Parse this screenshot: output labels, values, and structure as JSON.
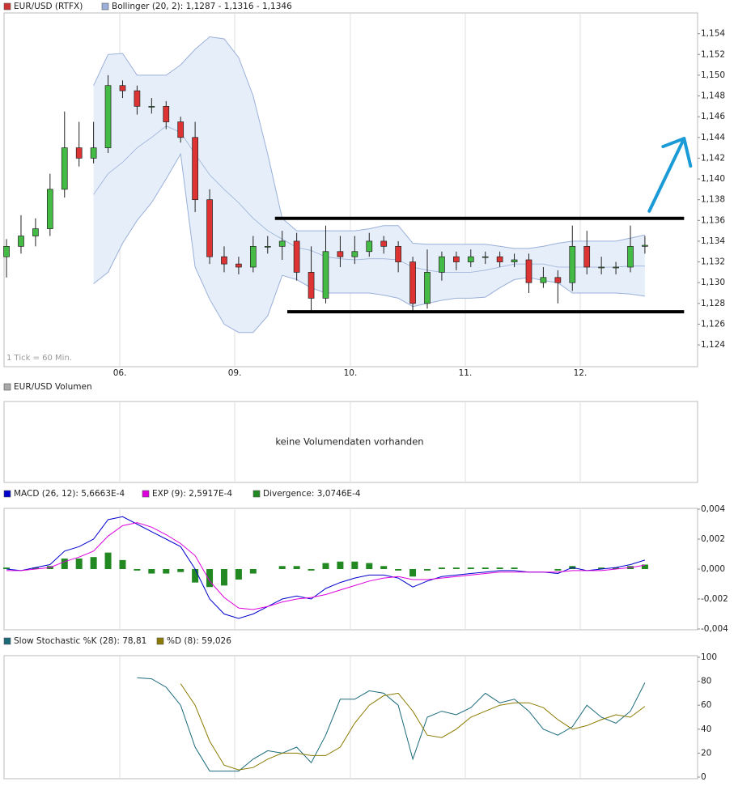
{
  "chart_data": [
    {
      "type": "candlestick",
      "annotation": "1 Tick = 60 Min.",
      "xlim": [
        -0.17,
        47.63
      ],
      "xticks": [
        {
          "value": 7.81,
          "label": "06."
        },
        {
          "value": 15.73,
          "label": "09."
        },
        {
          "value": 23.7,
          "label": "10."
        },
        {
          "value": 31.62,
          "label": "11."
        },
        {
          "value": 39.54,
          "label": "12."
        }
      ],
      "ylim": [
        1.1219,
        1.156
      ],
      "yticks": [
        {
          "value": 1.124,
          "label": "1,124"
        },
        {
          "value": 1.126,
          "label": "1,126"
        },
        {
          "value": 1.128,
          "label": "1,128"
        },
        {
          "value": 1.13,
          "label": "1,130"
        },
        {
          "value": 1.132,
          "label": "1,132"
        },
        {
          "value": 1.134,
          "label": "1,134"
        },
        {
          "value": 1.136,
          "label": "1,136"
        },
        {
          "value": 1.138,
          "label": "1,138"
        },
        {
          "value": 1.14,
          "label": "1,140"
        },
        {
          "value": 1.142,
          "label": "1,142"
        },
        {
          "value": 1.144,
          "label": "1,144"
        },
        {
          "value": 1.146,
          "label": "1,146"
        },
        {
          "value": 1.148,
          "label": "1,148"
        },
        {
          "value": 1.15,
          "label": "1,150"
        },
        {
          "value": 1.152,
          "label": "1,152"
        },
        {
          "value": 1.154,
          "label": "1,154"
        }
      ],
      "grid": "x",
      "series": [
        {
          "name": "EUR/USD (RTFX)",
          "color": "#cc3333",
          "up_color": "#44bb44",
          "down_color": "#dd3333",
          "open": [
            1.1325,
            1.1335,
            1.1345,
            1.1352,
            1.139,
            1.143,
            1.142,
            1.143,
            1.149,
            1.1485,
            1.147,
            1.147,
            1.1455,
            1.144,
            1.138,
            1.1325,
            1.1318,
            1.1315,
            1.1335,
            1.1335,
            1.134,
            1.131,
            1.1285,
            1.133,
            1.1325,
            1.133,
            1.134,
            1.1335,
            1.132,
            1.128,
            1.131,
            1.1325,
            1.132,
            1.1325,
            1.1325,
            1.132,
            1.1322,
            1.13,
            1.1305,
            1.13,
            1.1335,
            1.1315,
            1.1315,
            1.1315,
            1.1335
          ],
          "high": [
            1.1342,
            1.1365,
            1.1362,
            1.1405,
            1.1465,
            1.1455,
            1.1455,
            1.15,
            1.1495,
            1.149,
            1.1478,
            1.1475,
            1.146,
            1.1455,
            1.139,
            1.1335,
            1.1325,
            1.1345,
            1.1345,
            1.135,
            1.1348,
            1.1335,
            1.1355,
            1.1345,
            1.1345,
            1.1348,
            1.1345,
            1.134,
            1.1325,
            1.1332,
            1.133,
            1.133,
            1.1332,
            1.133,
            1.133,
            1.1328,
            1.1328,
            1.1315,
            1.1312,
            1.1355,
            1.135,
            1.1325,
            1.132,
            1.1355,
            1.1345
          ],
          "low": [
            1.1305,
            1.1328,
            1.1335,
            1.1345,
            1.1382,
            1.1412,
            1.1415,
            1.1425,
            1.1478,
            1.1462,
            1.1463,
            1.1448,
            1.1435,
            1.1368,
            1.1318,
            1.131,
            1.1308,
            1.131,
            1.1328,
            1.1322,
            1.1302,
            1.1272,
            1.128,
            1.1315,
            1.1318,
            1.1325,
            1.1328,
            1.131,
            1.1272,
            1.1275,
            1.1302,
            1.1312,
            1.1315,
            1.1318,
            1.1315,
            1.1315,
            1.129,
            1.1295,
            1.128,
            1.1292,
            1.1308,
            1.1308,
            1.1308,
            1.131,
            1.1328
          ],
          "close": [
            1.1335,
            1.1345,
            1.1352,
            1.139,
            1.143,
            1.142,
            1.143,
            1.149,
            1.1485,
            1.147,
            1.147,
            1.1455,
            1.144,
            1.138,
            1.1325,
            1.1318,
            1.1315,
            1.1335,
            1.1335,
            1.134,
            1.131,
            1.1285,
            1.133,
            1.1325,
            1.133,
            1.134,
            1.1335,
            1.132,
            1.128,
            1.131,
            1.1325,
            1.132,
            1.1325,
            1.1325,
            1.132,
            1.1322,
            1.13,
            1.1305,
            1.13,
            1.1335,
            1.1315,
            1.1315,
            1.1315,
            1.1335,
            1.1336
          ]
        },
        {
          "name": "Bollinger (20, 2): 1,1287 - 1,1316 - 1,1346",
          "color": "#9ab0d8",
          "fill": "#e6eefa",
          "upper": [
            null,
            null,
            null,
            null,
            null,
            null,
            1.149,
            1.152,
            1.1521,
            1.15,
            1.15,
            1.15,
            1.151,
            1.1525,
            1.1537,
            1.1535,
            1.1517,
            1.148,
            1.1424,
            1.1362,
            1.135,
            1.135,
            1.135,
            1.135,
            1.135,
            1.1352,
            1.1355,
            1.1355,
            1.1338,
            1.1337,
            1.1337,
            1.1337,
            1.1337,
            1.1337,
            1.1335,
            1.1333,
            1.1333,
            1.1335,
            1.1338,
            1.134,
            1.134,
            1.134,
            1.134,
            1.1343,
            1.1346
          ],
          "middle": [
            null,
            null,
            null,
            null,
            null,
            null,
            1.1385,
            1.1405,
            1.1416,
            1.143,
            1.144,
            1.1451,
            1.1445,
            1.1424,
            1.1404,
            1.139,
            1.1377,
            1.1362,
            1.135,
            1.1342,
            1.1334,
            1.1331,
            1.1325,
            1.1323,
            1.1322,
            1.1323,
            1.1323,
            1.1322,
            1.1315,
            1.1312,
            1.131,
            1.131,
            1.131,
            1.1312,
            1.1315,
            1.1318,
            1.1318,
            1.1318,
            1.1315,
            1.1315,
            1.1315,
            1.1315,
            1.1315,
            1.1316,
            1.1316
          ],
          "lower": [
            null,
            null,
            null,
            null,
            null,
            null,
            1.1299,
            1.131,
            1.1338,
            1.136,
            1.1377,
            1.14,
            1.1424,
            1.1315,
            1.1284,
            1.126,
            1.1252,
            1.1252,
            1.1268,
            1.1307,
            1.1303,
            1.1295,
            1.129,
            1.129,
            1.129,
            1.129,
            1.1288,
            1.1285,
            1.1277,
            1.128,
            1.1283,
            1.1285,
            1.1285,
            1.1286,
            1.1295,
            1.1303,
            1.1305,
            1.1302,
            1.13,
            1.129,
            1.129,
            1.129,
            1.129,
            1.1289,
            1.1287
          ]
        }
      ],
      "hlines": [
        {
          "y": 1.1362,
          "x": [
            18.5,
            46.7
          ],
          "color": "#000000"
        },
        {
          "y": 1.1272,
          "x": [
            19.35,
            46.7
          ],
          "color": "#000000"
        }
      ],
      "arrow": {
        "from": [
          44.3,
          1.1369
        ],
        "to": [
          46.7,
          1.1439
        ],
        "color": "#1a9ad6"
      }
    },
    {
      "type": "empty",
      "series": [
        {
          "name": "EUR/USD Volumen",
          "color": "#aaaaaa"
        }
      ],
      "message": "keine Volumendaten vorhanden"
    },
    {
      "type": "macd",
      "ylim": [
        -0.004,
        0.004
      ],
      "yticks": [
        {
          "value": 0.004,
          "label": "0,004"
        },
        {
          "value": 0.002,
          "label": "0,002"
        },
        {
          "value": 0,
          "label": "0,000"
        },
        {
          "value": -0.002,
          "label": "-0,002"
        },
        {
          "value": -0.004,
          "label": "-0,004"
        }
      ],
      "series": [
        {
          "name": "MACD (26, 12): 5,6663E-4",
          "color": "#0000cc",
          "kind": "line",
          "values": [
            0,
            -0.0001,
            0.0001,
            0.0003,
            0.0012,
            0.0015,
            0.002,
            0.0033,
            0.0035,
            0.003,
            0.0025,
            0.002,
            0.0015,
            0,
            -0.002,
            -0.003,
            -0.0033,
            -0.003,
            -0.0025,
            -0.002,
            -0.0018,
            -0.002,
            -0.0013,
            -0.0009,
            -0.0006,
            -0.0004,
            -0.0004,
            -0.0006,
            -0.0012,
            -0.0008,
            -0.0005,
            -0.0004,
            -0.0003,
            -0.0002,
            -0.0001,
            -0.0001,
            -0.0002,
            -0.0002,
            -0.0003,
            0.0001,
            -0.0001,
            0,
            0.0001,
            0.0003,
            0.0006
          ]
        },
        {
          "name": "EXP (9): 2,5917E-4",
          "color": "#dd00dd",
          "kind": "line",
          "values": [
            -0.0001,
            -0.0001,
            0,
            0.0001,
            0.0005,
            0.0008,
            0.0012,
            0.0022,
            0.0029,
            0.0031,
            0.0028,
            0.0023,
            0.0017,
            0.0009,
            -0.0008,
            -0.0019,
            -0.0026,
            -0.0027,
            -0.0025,
            -0.0022,
            -0.002,
            -0.0019,
            -0.0017,
            -0.0014,
            -0.0011,
            -0.0008,
            -0.0006,
            -0.0005,
            -0.0007,
            -0.0007,
            -0.0006,
            -0.0005,
            -0.0004,
            -0.0003,
            -0.0002,
            -0.0002,
            -0.0002,
            -0.0002,
            -0.0002,
            -0.0001,
            -0.0001,
            -0.0001,
            0,
            0.0001,
            0.00026
          ]
        },
        {
          "name": "Divergence: 3,0746E-4",
          "color": "#228822",
          "kind": "bar",
          "values": [
            0.0001,
            0,
            0.0001,
            0.0002,
            0.0007,
            0.0007,
            0.0008,
            0.0011,
            0.0006,
            -0.0001,
            -0.0003,
            -0.0003,
            -0.0002,
            -0.0009,
            -0.0012,
            -0.0011,
            -0.0007,
            -0.0003,
            0,
            0.0002,
            0.0002,
            -0.0001,
            0.0004,
            0.0005,
            0.0005,
            0.0004,
            0.0002,
            -0.0001,
            -0.0005,
            -0.0001,
            0.0001,
            0.0001,
            0.0001,
            0.0001,
            0.0001,
            0.0001,
            0,
            0,
            -0.0001,
            0.0002,
            0,
            0.0001,
            0.0001,
            0.0002,
            0.0003
          ]
        }
      ]
    },
    {
      "type": "stochastic",
      "ylim": [
        0,
        100
      ],
      "yticks": [
        0,
        20,
        40,
        60,
        80,
        100
      ],
      "series": [
        {
          "name": "Slow Stochastic %K (28): 78,81",
          "color": "#1a6a7a",
          "kind": "line",
          "values": [
            null,
            null,
            null,
            null,
            null,
            null,
            null,
            null,
            null,
            83,
            82,
            75,
            60,
            25,
            5,
            5,
            5,
            15,
            22,
            20,
            25,
            12,
            35,
            65,
            65,
            72,
            70,
            60,
            15,
            50,
            55,
            52,
            58,
            70,
            62,
            65,
            55,
            40,
            35,
            42,
            60,
            50,
            45,
            55,
            78.81
          ]
        },
        {
          "name": "%D (8): 59,026",
          "color": "#8a7a00",
          "kind": "line",
          "values": [
            null,
            null,
            null,
            null,
            null,
            null,
            null,
            null,
            null,
            null,
            null,
            null,
            78,
            60,
            30,
            10,
            6,
            8,
            15,
            20,
            20,
            18,
            18,
            25,
            45,
            60,
            68,
            70,
            55,
            35,
            33,
            40,
            50,
            55,
            60,
            62,
            62,
            58,
            48,
            40,
            43,
            48,
            52,
            50,
            59.026
          ]
        }
      ]
    }
  ]
}
